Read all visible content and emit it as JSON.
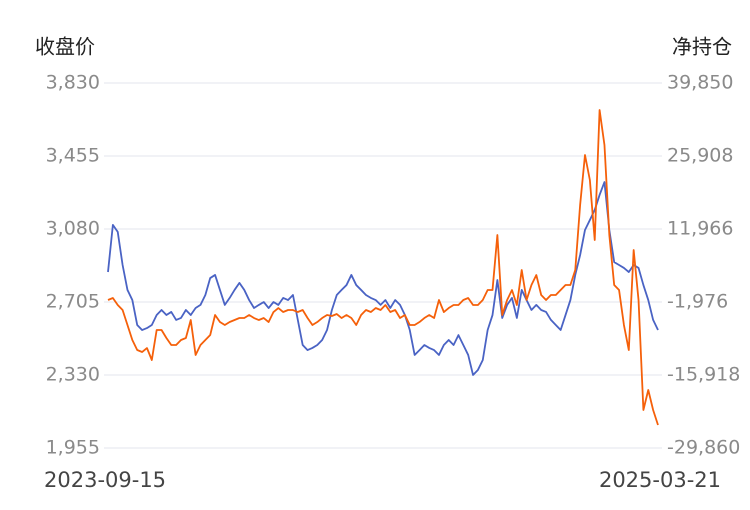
{
  "chart_data": {
    "type": "line",
    "y_label": "收盘价",
    "y2_label": "净持仓",
    "categories": [
      "2023-09-15",
      null,
      null,
      null,
      null,
      null,
      null,
      null,
      null,
      null,
      null,
      null,
      null,
      null,
      null,
      null,
      null,
      null,
      null,
      null,
      null,
      null,
      null,
      null,
      null,
      null,
      null,
      null,
      null,
      null,
      null,
      null,
      null,
      null,
      null,
      null,
      null,
      null,
      null,
      null,
      null,
      null,
      null,
      null,
      null,
      null,
      null,
      null,
      null,
      null,
      null,
      null,
      null,
      null,
      null,
      null,
      null,
      null,
      null,
      null,
      null,
      null,
      null,
      null,
      null,
      null,
      null,
      null,
      null,
      null,
      null,
      null,
      null,
      null,
      null,
      null,
      null,
      null,
      null,
      null,
      null,
      null,
      null,
      null,
      null,
      null,
      null,
      null,
      null,
      null,
      null,
      null,
      null,
      null,
      null,
      null,
      null,
      null,
      null,
      null,
      null,
      null,
      null,
      null,
      null,
      null,
      null,
      null,
      null,
      null,
      null,
      null,
      null,
      "2025-03-21"
    ],
    "ylim": [
      1955,
      3830
    ],
    "yticks": [
      {
        "value": 1955,
        "label": "1,955"
      },
      {
        "value": 2330,
        "label": "2,330"
      },
      {
        "value": 2705,
        "label": "2,705"
      },
      {
        "value": 3080,
        "label": "3,080"
      },
      {
        "value": 3455,
        "label": "3,455"
      },
      {
        "value": 3830,
        "label": "3,830"
      }
    ],
    "y2lim": [
      -29860,
      39850
    ],
    "y2ticks": [
      {
        "value": -29860,
        "label": "-29,860"
      },
      {
        "value": -15918,
        "label": "-15,918"
      },
      {
        "value": -1976,
        "label": "-1,976"
      },
      {
        "value": 11966,
        "label": "11,966"
      },
      {
        "value": 25908,
        "label": "25,908"
      },
      {
        "value": 39850,
        "label": "39,850"
      }
    ],
    "grid": true,
    "series": [
      {
        "name": "收盘价",
        "color": "#4a63c4",
        "values": [
          2859,
          3101,
          3065,
          2895,
          2767,
          2715,
          2587,
          2561,
          2571,
          2587,
          2638,
          2664,
          2638,
          2654,
          2613,
          2623,
          2664,
          2638,
          2674,
          2690,
          2741,
          2828,
          2844,
          2767,
          2690,
          2726,
          2767,
          2803,
          2767,
          2715,
          2674,
          2690,
          2705,
          2674,
          2705,
          2690,
          2726,
          2715,
          2741,
          2613,
          2484,
          2458,
          2469,
          2484,
          2510,
          2561,
          2664,
          2741,
          2767,
          2792,
          2844,
          2792,
          2767,
          2741,
          2726,
          2715,
          2690,
          2715,
          2674,
          2715,
          2690,
          2638,
          2561,
          2433,
          2458,
          2484,
          2469,
          2458,
          2433,
          2484,
          2510,
          2484,
          2535,
          2484,
          2433,
          2330,
          2356,
          2407,
          2561,
          2638,
          2818,
          2623,
          2690,
          2726,
          2623,
          2767,
          2715,
          2664,
          2690,
          2664,
          2654,
          2613,
          2587,
          2561,
          2638,
          2715,
          2844,
          2946,
          3075,
          3126,
          3178,
          3255,
          3321,
          3075,
          2910,
          2895,
          2880,
          2859,
          2895,
          2880,
          2792,
          2715,
          2613,
          2561
        ]
      },
      {
        "name": "净持仓",
        "color": "#f5600a",
        "axis": "y2",
        "values": [
          -1597,
          -1215,
          -2552,
          -3507,
          -6372,
          -9237,
          -11147,
          -11529,
          -10765,
          -13057,
          -7327,
          -7327,
          -8855,
          -10192,
          -10192,
          -9237,
          -8855,
          -5417,
          -12102,
          -10192,
          -9237,
          -8282,
          -4462,
          -5799,
          -6372,
          -5799,
          -5417,
          -5035,
          -5035,
          -4462,
          -5035,
          -5417,
          -5035,
          -5799,
          -3889,
          -3125,
          -3889,
          -3507,
          -3507,
          -3889,
          -3507,
          -5035,
          -6372,
          -5799,
          -5035,
          -4462,
          -4653,
          -4271,
          -5035,
          -4462,
          -5035,
          -6372,
          -4462,
          -3507,
          -3889,
          -3125,
          -3507,
          -2552,
          -3889,
          -3507,
          -5035,
          -4462,
          -6372,
          -6372,
          -5799,
          -5035,
          -4462,
          -5035,
          -1597,
          -3889,
          -3125,
          -2552,
          -2552,
          -1597,
          -1215,
          -2552,
          -2552,
          -1597,
          313,
          313,
          10818,
          -4462,
          -1597,
          313,
          -2552,
          4133,
          -1597,
          1268,
          3178,
          -642,
          -1597,
          -642,
          -642,
          313,
          1268,
          1268,
          4133,
          16548,
          26098,
          21323,
          9863,
          34693,
          28008,
          10818,
          1268,
          313,
          -6372,
          -11147,
          7953,
          -1597,
          -22607,
          -18787,
          -22607,
          -25472
        ]
      }
    ]
  }
}
